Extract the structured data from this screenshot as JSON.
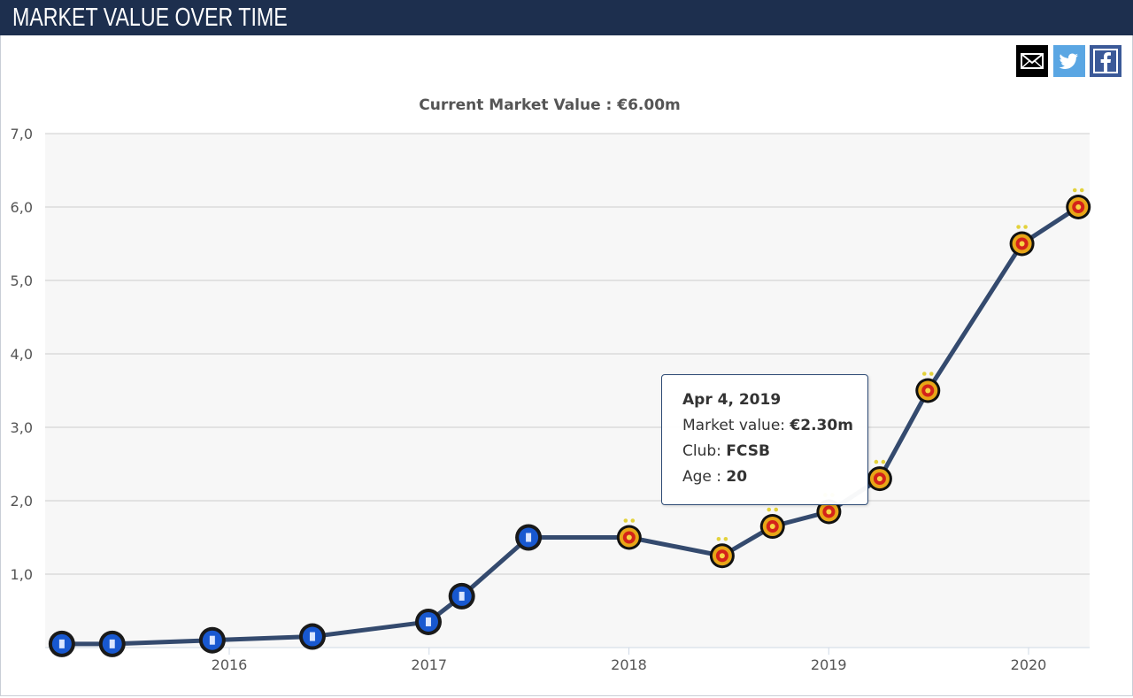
{
  "header": {
    "title": "MARKET VALUE OVER TIME"
  },
  "share": {
    "icons": [
      "mail-icon",
      "twitter-icon",
      "facebook-icon"
    ]
  },
  "colors": {
    "header_bg": "#1d2f4e",
    "line": "#344a6e",
    "grid": "#cccccc",
    "plot_bg": "#f7f7f7"
  },
  "chart_data": {
    "type": "line",
    "title": "Current Market Value : €6.00m",
    "xlabel": "",
    "ylabel": "",
    "ylim": [
      0,
      7
    ],
    "y_ticks": [
      "1,0",
      "2,0",
      "3,0",
      "4,0",
      "5,0",
      "6,0",
      "7,0"
    ],
    "x_ticks": [
      "2016",
      "2017",
      "2018",
      "2019",
      "2020"
    ],
    "grid": true,
    "legend": "none",
    "series": [
      {
        "x": [
          "2015-03-01",
          "2015-06-01",
          "2015-12-01",
          "2016-06-01",
          "2016-12-30",
          "2017-03-01",
          "2017-07-01",
          "2018-01-01",
          "2018-06-20",
          "2018-09-20",
          "2019-01-01",
          "2019-04-04",
          "2019-07-01",
          "2019-12-20",
          "2020-04-01"
        ],
        "values": [
          0.05,
          0.05,
          0.1,
          0.15,
          0.35,
          0.7,
          1.5,
          1.5,
          1.25,
          1.65,
          1.85,
          2.3,
          3.5,
          5.5,
          6.0
        ],
        "clubs": [
          "other",
          "other",
          "other",
          "other",
          "other",
          "other",
          "other",
          "FCSB",
          "FCSB",
          "FCSB",
          "FCSB",
          "FCSB",
          "FCSB",
          "FCSB",
          "FCSB"
        ]
      }
    ]
  },
  "tooltip": {
    "date": "Apr 4, 2019",
    "market_value_label": "Market value: ",
    "market_value": "€2.30m",
    "club_label": "Club: ",
    "club": "FCSB",
    "age_label": "Age : ",
    "age": "20"
  }
}
